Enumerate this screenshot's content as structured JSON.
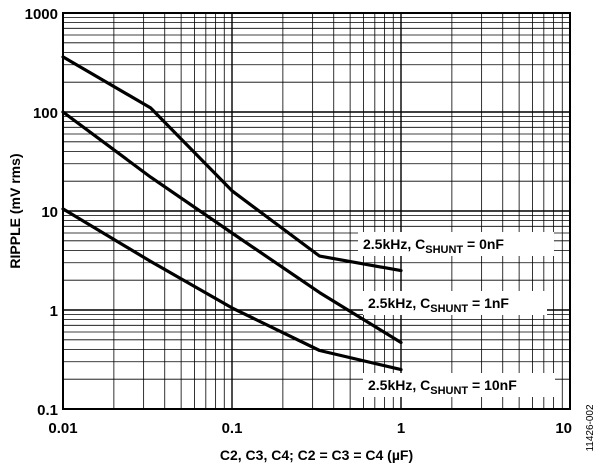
{
  "chart_data": {
    "type": "line",
    "x_scale": "log",
    "y_scale": "log",
    "xlim": [
      0.01,
      10
    ],
    "ylim": [
      0.1,
      1000
    ],
    "grid": true,
    "x_ticks": [
      "0.01",
      "0.1",
      "1",
      "10"
    ],
    "y_ticks": [
      "0.1",
      "1",
      "10",
      "100",
      "1000"
    ],
    "xlabel": "C2, C3, C4; C2 = C3 = C4 (µF)",
    "ylabel": "RIPPLE (mV rms)",
    "figure_id": "11426-002",
    "series": [
      {
        "label_main": "2.5kHz, C",
        "label_sub": "SHUNT",
        "label_tail": " = 0nF",
        "x": [
          0.01,
          0.033,
          0.1,
          0.33,
          1
        ],
        "y": [
          360,
          110,
          16,
          3.5,
          2.5
        ]
      },
      {
        "label_main": "2.5kHz, C",
        "label_sub": "SHUNT",
        "label_tail": " = 1nF",
        "x": [
          0.01,
          0.033,
          0.1,
          0.33,
          1
        ],
        "y": [
          100,
          22,
          6,
          1.5,
          0.47
        ]
      },
      {
        "label_main": "2.5kHz, C",
        "label_sub": "SHUNT",
        "label_tail": " = 10nF",
        "x": [
          0.01,
          0.033,
          0.1,
          0.33,
          1
        ],
        "y": [
          10.5,
          3.1,
          1.05,
          0.39,
          0.25
        ]
      }
    ]
  }
}
